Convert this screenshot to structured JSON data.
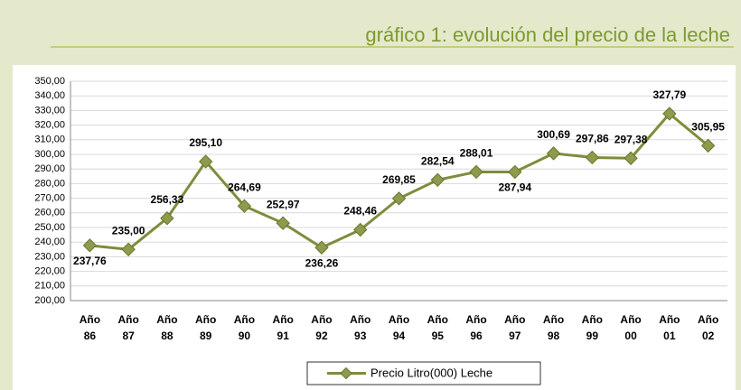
{
  "chart_data": {
    "type": "line",
    "title": "gráfico 1:   evolución del precio de la leche",
    "categories": [
      [
        "Año",
        "86"
      ],
      [
        "Año",
        "87"
      ],
      [
        "Año",
        "88"
      ],
      [
        "Año",
        "89"
      ],
      [
        "Año",
        "90"
      ],
      [
        "Año",
        "91"
      ],
      [
        "Año",
        "92"
      ],
      [
        "Año",
        "93"
      ],
      [
        "Año",
        "94"
      ],
      [
        "Año",
        "95"
      ],
      [
        "Año",
        "96"
      ],
      [
        "Año",
        "97"
      ],
      [
        "Año",
        "98"
      ],
      [
        "Año",
        "99"
      ],
      [
        "Año",
        "00"
      ],
      [
        "Año",
        "01"
      ],
      [
        "Año",
        "02"
      ]
    ],
    "series": [
      {
        "name": "Precio Litro(000) Leche",
        "color": "#7f8c3c",
        "values": [
          237.76,
          235.0,
          256.33,
          295.1,
          264.69,
          252.97,
          236.26,
          248.46,
          269.85,
          282.54,
          288.01,
          287.94,
          300.69,
          297.86,
          297.38,
          327.79,
          305.95
        ],
        "value_labels": [
          "237,76",
          "235,00",
          "256,33",
          "295,10",
          "264,69",
          "252,97",
          "236,26",
          "248,46",
          "269,85",
          "282,54",
          "288,01",
          "287,94",
          "300,69",
          "297,86",
          "297,38",
          "327,79",
          "305,95"
        ]
      }
    ],
    "ylim": [
      200,
      350
    ],
    "yticks": [
      {
        "value": 200,
        "label": "200,00"
      },
      {
        "value": 210,
        "label": "210,00"
      },
      {
        "value": 220,
        "label": "220,00"
      },
      {
        "value": 230,
        "label": "230,00"
      },
      {
        "value": 240,
        "label": "240,00"
      },
      {
        "value": 250,
        "label": "250,00"
      },
      {
        "value": 260,
        "label": "260,00"
      },
      {
        "value": 270,
        "label": "270,00"
      },
      {
        "value": 280,
        "label": "280,00"
      },
      {
        "value": 290,
        "label": "290,00"
      },
      {
        "value": 300,
        "label": "300,00"
      },
      {
        "value": 310,
        "label": "310,00"
      },
      {
        "value": 320,
        "label": "320,00"
      },
      {
        "value": 330,
        "label": "330,00"
      },
      {
        "value": 340,
        "label": "340,00"
      },
      {
        "value": 350,
        "label": "350,00"
      }
    ],
    "grid": true,
    "legend": "bottom"
  }
}
